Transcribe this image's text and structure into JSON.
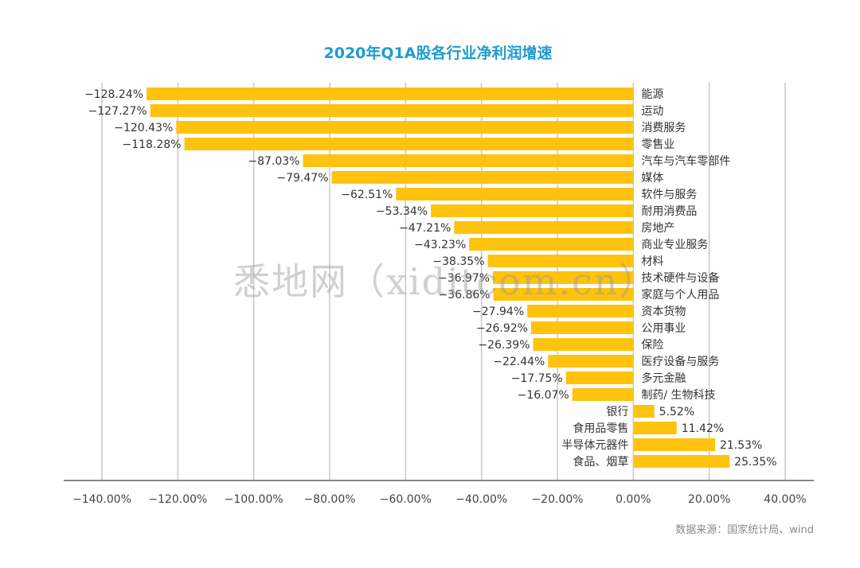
{
  "chart_data": {
    "type": "bar",
    "orientation": "horizontal",
    "title": "2020年Q1A股各行业净利润增速",
    "categories": [
      "能源",
      "运动",
      "消费服务",
      "零售业",
      "汽车与汽车零部件",
      "媒体",
      "软件与服务",
      "耐用消费品",
      "房地产",
      "商业专业服务",
      "材料",
      "技术硬件与设备",
      "家庭与个人用品",
      "资本货物",
      "公用事业",
      "保险",
      "医疗设备与服务",
      "多元金融",
      "制药/ 生物科技",
      "银行",
      "食用品零售",
      "半导体元器件",
      "食品、烟草"
    ],
    "values": [
      -128.24,
      -127.27,
      -120.43,
      -118.28,
      -87.03,
      -79.47,
      -62.51,
      -53.34,
      -47.21,
      -43.23,
      -38.35,
      -36.97,
      -36.86,
      -27.94,
      -26.92,
      -26.39,
      -22.44,
      -17.75,
      -16.07,
      5.52,
      11.42,
      21.53,
      25.35
    ],
    "value_labels": [
      "−128.24%",
      "−127.27%",
      "−120.43%",
      "−118.28%",
      "−87.03%",
      "−79.47%",
      "−62.51%",
      "−53.34%",
      "−47.21%",
      "−43.23%",
      "−38.35%",
      "−36.97%",
      "−36.86%",
      "−27.94%",
      "−26.92%",
      "−26.39%",
      "−22.44%",
      "−17.75%",
      "−16.07%",
      "5.52%",
      "11.42%",
      "21.53%",
      "25.35%"
    ],
    "xlim": [
      -140,
      40
    ],
    "xticks": [
      -140,
      -120,
      -100,
      -80,
      -60,
      -40,
      -20,
      0,
      20,
      40
    ],
    "xtick_labels": [
      "−140.00%",
      "−120.00%",
      "−100.00%",
      "−80.00%",
      "−60.00%",
      "−40.00%",
      "−20.00%",
      "0.00%",
      "20.00%",
      "40.00%"
    ],
    "grid": "vertical",
    "bar_color": "#ffc20e",
    "xlabel": "",
    "ylabel": ""
  },
  "source_note": "数据来源：国家统计局、wind",
  "watermark": "悉地网（xiditcom.cn）"
}
